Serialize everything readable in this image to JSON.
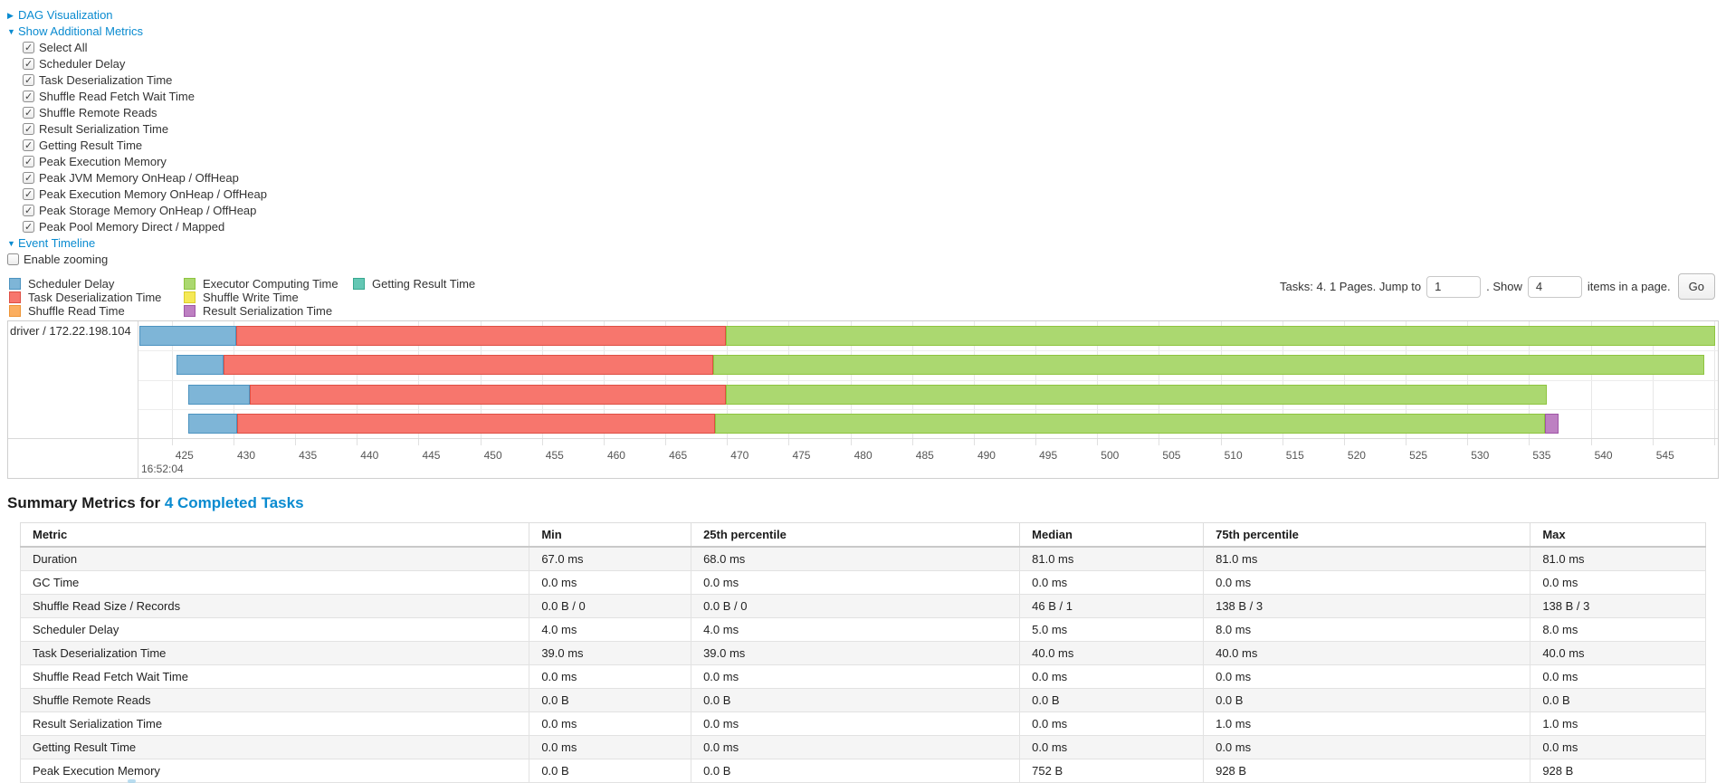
{
  "ui_colors": {
    "link": "#0a8bd0"
  },
  "sections": {
    "dag": {
      "label": "DAG Visualization",
      "collapsed": true
    },
    "additional_metrics": {
      "label": "Show Additional Metrics",
      "collapsed": false
    },
    "event_timeline": {
      "label": "Event Timeline",
      "collapsed": false
    }
  },
  "additional_metrics": {
    "options": [
      {
        "label": "Select All",
        "checked": true
      },
      {
        "label": "Scheduler Delay",
        "checked": true
      },
      {
        "label": "Task Deserialization Time",
        "checked": true
      },
      {
        "label": "Shuffle Read Fetch Wait Time",
        "checked": true
      },
      {
        "label": "Shuffle Remote Reads",
        "checked": true
      },
      {
        "label": "Result Serialization Time",
        "checked": true
      },
      {
        "label": "Getting Result Time",
        "checked": true
      },
      {
        "label": "Peak Execution Memory",
        "checked": true
      },
      {
        "label": "Peak JVM Memory OnHeap / OffHeap",
        "checked": true
      },
      {
        "label": "Peak Execution Memory OnHeap / OffHeap",
        "checked": true
      },
      {
        "label": "Peak Storage Memory OnHeap / OffHeap",
        "checked": true
      },
      {
        "label": "Peak Pool Memory Direct / Mapped",
        "checked": true
      }
    ]
  },
  "enable_zooming": {
    "label": "Enable zooming",
    "checked": false
  },
  "legend": {
    "items": {
      "scheduler-delay": {
        "label": "Scheduler Delay",
        "color": "#7EB5D7",
        "border": "#4C93C0"
      },
      "task-deserialization-time": {
        "label": "Task Deserialization Time",
        "color": "#F7766D",
        "border": "#DE4F44"
      },
      "shuffle-read-time": {
        "label": "Shuffle Read Time",
        "color": "#FBAE60",
        "border": "#ED9436"
      },
      "executor-computing-time": {
        "label": "Executor Computing Time",
        "color": "#ABD870",
        "border": "#8EC43F"
      },
      "shuffle-write-time": {
        "label": "Shuffle Write Time",
        "color": "#F5E956",
        "border": "#DCCF2C"
      },
      "result-serialization-time": {
        "label": "Result Serialization Time",
        "color": "#BD80C2",
        "border": "#9F56A6"
      },
      "getting-result-time": {
        "label": "Getting Result Time",
        "color": "#64C7B4",
        "border": "#37A88F"
      }
    },
    "columns": [
      [
        "scheduler-delay",
        "task-deserialization-time",
        "shuffle-read-time"
      ],
      [
        "executor-computing-time",
        "shuffle-write-time",
        "result-serialization-time"
      ],
      [
        "getting-result-time"
      ]
    ]
  },
  "pagination": {
    "tasks_text": "Tasks: 4. 1 Pages. Jump to",
    "jump_value": "1",
    "mid_text": ". Show",
    "show_value": "4",
    "suffix_text": "items in a page.",
    "go_label": "Go"
  },
  "chart_data": {
    "type": "timeline",
    "group_label": "driver / 172.22.198.104",
    "time_axis": {
      "major_label": "16:52:04",
      "unit": "ms",
      "tick_start": 425,
      "tick_end": 550,
      "tick_step": 5,
      "domain": [
        422.3,
        550.3
      ]
    },
    "tasks": [
      {
        "segments": [
          {
            "metric": "scheduler-delay",
            "start": 422.4,
            "end": 430.2
          },
          {
            "metric": "task-deserialization-time",
            "start": 430.2,
            "end": 469.9
          },
          {
            "metric": "executor-computing-time",
            "start": 469.9,
            "end": 550.1
          }
        ]
      },
      {
        "segments": [
          {
            "metric": "scheduler-delay",
            "start": 425.4,
            "end": 429.2
          },
          {
            "metric": "task-deserialization-time",
            "start": 429.2,
            "end": 468.9
          },
          {
            "metric": "executor-computing-time",
            "start": 468.9,
            "end": 549.2
          }
        ]
      },
      {
        "segments": [
          {
            "metric": "scheduler-delay",
            "start": 426.3,
            "end": 431.3
          },
          {
            "metric": "task-deserialization-time",
            "start": 431.3,
            "end": 469.9
          },
          {
            "metric": "executor-computing-time",
            "start": 469.9,
            "end": 536.4
          }
        ]
      },
      {
        "segments": [
          {
            "metric": "scheduler-delay",
            "start": 426.3,
            "end": 430.3
          },
          {
            "metric": "task-deserialization-time",
            "start": 430.3,
            "end": 469.0
          },
          {
            "metric": "executor-computing-time",
            "start": 469.0,
            "end": 536.3
          },
          {
            "metric": "result-serialization-time",
            "start": 536.3,
            "end": 537.4
          }
        ]
      }
    ]
  },
  "summary": {
    "title_prefix": "Summary Metrics for ",
    "title_link": "4 Completed Tasks",
    "columns": [
      "Metric",
      "Min",
      "25th percentile",
      "Median",
      "75th percentile",
      "Max"
    ],
    "rows": [
      [
        "Duration",
        "67.0 ms",
        "68.0 ms",
        "81.0 ms",
        "81.0 ms",
        "81.0 ms"
      ],
      [
        "GC Time",
        "0.0 ms",
        "0.0 ms",
        "0.0 ms",
        "0.0 ms",
        "0.0 ms"
      ],
      [
        "Shuffle Read Size / Records",
        "0.0 B / 0",
        "0.0 B / 0",
        "46 B / 1",
        "138 B / 3",
        "138 B / 3"
      ],
      [
        "Scheduler Delay",
        "4.0 ms",
        "4.0 ms",
        "5.0 ms",
        "8.0 ms",
        "8.0 ms"
      ],
      [
        "Task Deserialization Time",
        "39.0 ms",
        "39.0 ms",
        "40.0 ms",
        "40.0 ms",
        "40.0 ms"
      ],
      [
        "Shuffle Read Fetch Wait Time",
        "0.0 ms",
        "0.0 ms",
        "0.0 ms",
        "0.0 ms",
        "0.0 ms"
      ],
      [
        "Shuffle Remote Reads",
        "0.0 B",
        "0.0 B",
        "0.0 B",
        "0.0 B",
        "0.0 B"
      ],
      [
        "Result Serialization Time",
        "0.0 ms",
        "0.0 ms",
        "0.0 ms",
        "1.0 ms",
        "1.0 ms"
      ],
      [
        "Getting Result Time",
        "0.0 ms",
        "0.0 ms",
        "0.0 ms",
        "0.0 ms",
        "0.0 ms"
      ],
      [
        "Peak Execution Memory",
        "0.0 B",
        "0.0 B",
        "752 B",
        "928 B",
        "928 B"
      ]
    ]
  }
}
